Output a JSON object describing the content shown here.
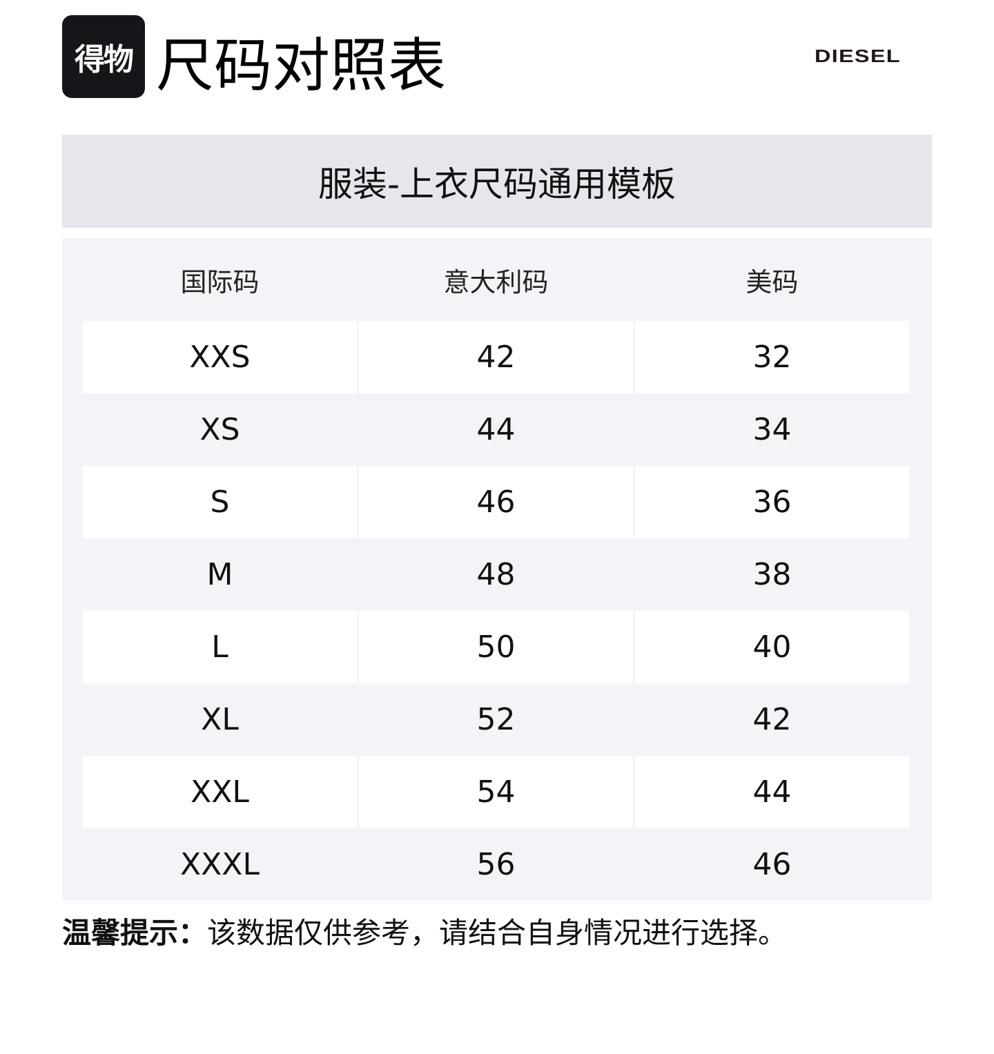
{
  "header": {
    "logo_text": "得物",
    "title": "尺码对照表",
    "brand": "DIESEL"
  },
  "band_title": "服装-上衣尺码通用模板",
  "table": {
    "columns": [
      "国际码",
      "意大利码",
      "美码"
    ],
    "rows": [
      [
        "XXS",
        "42",
        "32"
      ],
      [
        "XS",
        "44",
        "34"
      ],
      [
        "S",
        "46",
        "36"
      ],
      [
        "M",
        "48",
        "38"
      ],
      [
        "L",
        "50",
        "40"
      ],
      [
        "XL",
        "52",
        "42"
      ],
      [
        "XXL",
        "54",
        "44"
      ],
      [
        "XXXL",
        "56",
        "46"
      ]
    ]
  },
  "tip": {
    "label": "温馨提示：",
    "text": "该数据仅供参考，请结合自身情况进行选择。"
  }
}
